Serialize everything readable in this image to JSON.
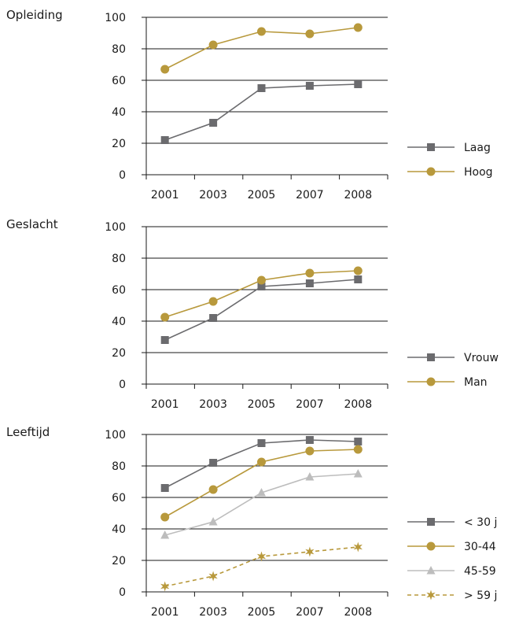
{
  "chart_data": [
    {
      "type": "line",
      "title": "Opleiding",
      "categories": [
        "2001",
        "2003",
        "2005",
        "2007",
        "2008"
      ],
      "ylim": [
        0,
        100
      ],
      "yticks": [
        0,
        20,
        40,
        60,
        80,
        100
      ],
      "grid": true,
      "legend_position": "right",
      "series": [
        {
          "name": "Laag",
          "values": [
            22,
            33,
            55,
            56.5,
            57.5
          ],
          "color": "#6b6b6e",
          "marker": "square",
          "dashed": false
        },
        {
          "name": "Hoog",
          "values": [
            67,
            82.5,
            91,
            89.5,
            93.5
          ],
          "color": "#b8993c",
          "marker": "circle",
          "dashed": false
        }
      ]
    },
    {
      "type": "line",
      "title": "Geslacht",
      "categories": [
        "2001",
        "2003",
        "2005",
        "2007",
        "2008"
      ],
      "ylim": [
        0,
        100
      ],
      "yticks": [
        0,
        20,
        40,
        60,
        80,
        100
      ],
      "grid": true,
      "legend_position": "right",
      "series": [
        {
          "name": "Vrouw",
          "values": [
            28,
            42,
            62,
            64,
            66.5
          ],
          "color": "#6b6b6e",
          "marker": "square",
          "dashed": false
        },
        {
          "name": "Man",
          "values": [
            42.5,
            52.5,
            66,
            70.5,
            72
          ],
          "color": "#b8993c",
          "marker": "circle",
          "dashed": false
        }
      ]
    },
    {
      "type": "line",
      "title": "Leeftijd",
      "categories": [
        "2001",
        "2003",
        "2005",
        "2007",
        "2008"
      ],
      "ylim": [
        0,
        100
      ],
      "yticks": [
        0,
        20,
        40,
        60,
        80,
        100
      ],
      "grid": true,
      "legend_position": "right",
      "series": [
        {
          "name": "< 30 j",
          "values": [
            66,
            82,
            94.5,
            96.5,
            95.5
          ],
          "color": "#6b6b6e",
          "marker": "square",
          "dashed": false
        },
        {
          "name": "30-44",
          "values": [
            47.5,
            65,
            82.5,
            89.5,
            90.5
          ],
          "color": "#b8993c",
          "marker": "circle",
          "dashed": false
        },
        {
          "name": "45-59",
          "values": [
            36,
            44.5,
            63,
            73,
            75
          ],
          "color": "#bdbdbd",
          "marker": "triangle",
          "dashed": false
        },
        {
          "name": "> 59 j",
          "values": [
            3.5,
            10,
            22.5,
            25.5,
            28.5
          ],
          "color": "#b8993c",
          "marker": "star",
          "dashed": true
        }
      ]
    }
  ]
}
